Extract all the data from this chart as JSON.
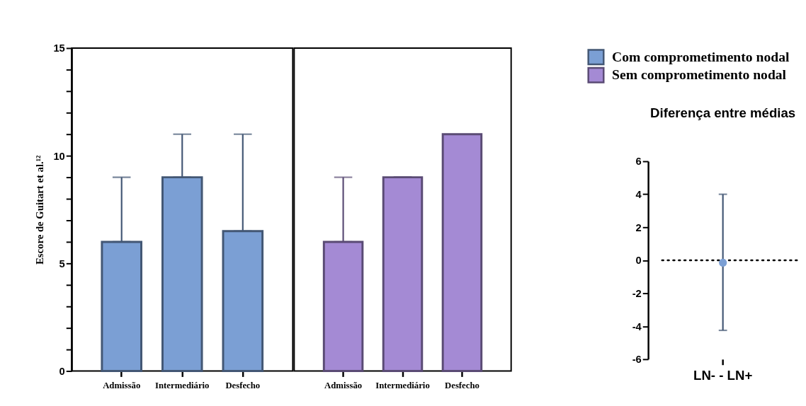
{
  "chart_data": [
    {
      "type": "bar",
      "ylabel": "Escore de Guitart et al.¹²",
      "categories": [
        "Admissão",
        "Intermediário",
        "Desfecho"
      ],
      "ylim": [
        0,
        15
      ],
      "yticks": [
        0,
        {
          "value": 1,
          "label": null
        },
        {
          "value": 2,
          "label": null
        },
        {
          "value": 3,
          "label": null
        },
        {
          "value": 4,
          "label": null
        },
        5,
        {
          "value": 6,
          "label": null
        },
        {
          "value": 7,
          "label": null
        },
        {
          "value": 8,
          "label": null
        },
        {
          "value": 9,
          "label": null
        },
        10,
        {
          "value": 11,
          "label": null
        },
        {
          "value": 12,
          "label": null
        },
        {
          "value": 13,
          "label": null
        },
        {
          "value": 14,
          "label": null
        },
        15
      ],
      "grid": false,
      "legend": "top right",
      "series": [
        {
          "name": "Com comprometimento nodal",
          "color": "#7b9fd4",
          "values": [
            6,
            9,
            6.5
          ],
          "errors": [
            [
              6,
              9
            ],
            [
              9,
              11
            ],
            [
              6.5,
              11
            ]
          ]
        }
      ]
    },
    {
      "type": "bar",
      "categories": [
        "Admissão",
        "Intermediário",
        "Desfecho"
      ],
      "ylim": [
        0,
        15
      ],
      "tick_labels": "x",
      "grid": false,
      "series": [
        {
          "name": "Sem comprometimento nodal",
          "color": "#a48ad4",
          "values": [
            6,
            9,
            11
          ],
          "errors": [
            [
              6,
              9
            ],
            [
              9,
              9
            ],
            null
          ]
        }
      ]
    },
    {
      "type": "scatter",
      "title": "Diferença entre médias",
      "categories": [
        "LN- - LN+"
      ],
      "ylim": [
        -6,
        6
      ],
      "yticks": [
        -6,
        -4,
        -2,
        0,
        2,
        4,
        6
      ],
      "grid": false,
      "marker": "circle",
      "ref_lines": [
        {
          "axis": "y",
          "value": 0,
          "line_style": "dotted"
        }
      ],
      "series": [
        {
          "color": "#7b9fd4",
          "values": [
            -0.15
          ],
          "errors": [
            [
              -4.25,
              4
            ]
          ]
        }
      ]
    }
  ]
}
